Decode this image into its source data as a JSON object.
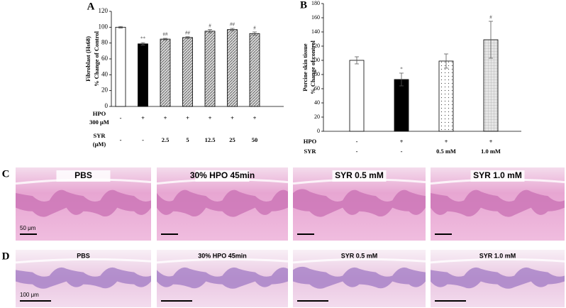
{
  "chart_data": [
    {
      "type": "bar",
      "panel": "A",
      "y_label": [
        "Fibroblast (Hs68)",
        "% Change of Control"
      ],
      "categories": [
        null,
        null,
        null,
        null,
        null,
        null,
        null
      ],
      "values": [
        100,
        79,
        85,
        87,
        95,
        97,
        92
      ],
      "errors": [
        1,
        1.5,
        1,
        1,
        2,
        1.5,
        2
      ],
      "annotations": [
        null,
        "**",
        "##",
        "##",
        "#",
        "##",
        "#"
      ],
      "fills": [
        "white",
        "black",
        "hatch",
        "hatch",
        "hatch",
        "hatch",
        "hatch"
      ],
      "ylim": [
        0,
        120
      ],
      "yticks": [
        0,
        20,
        40,
        60,
        80,
        100,
        120
      ],
      "rows": [
        {
          "label": [
            "HPO",
            "300 μM"
          ],
          "cells": [
            "-",
            "+",
            "+",
            "+",
            "+",
            "+",
            "+"
          ]
        },
        {
          "label": [
            "SYR",
            "(μM)"
          ],
          "cells": [
            "-",
            "-",
            "2.5",
            "5",
            "12.5",
            "25",
            "50"
          ]
        }
      ]
    },
    {
      "type": "bar",
      "panel": "B",
      "y_label": [
        "Porcine skin tissue",
        "% Change of control"
      ],
      "categories": [
        null,
        null,
        null,
        null
      ],
      "values": [
        100,
        73,
        99,
        129
      ],
      "errors": [
        5,
        9,
        10,
        26
      ],
      "annotations": [
        null,
        "*",
        null,
        "#"
      ],
      "fills": [
        "white",
        "black",
        "dots",
        "grid"
      ],
      "ylim": [
        0,
        180
      ],
      "yticks": [
        0,
        20,
        40,
        60,
        80,
        100,
        120,
        140,
        160,
        180
      ],
      "rows": [
        {
          "label": [
            "HPO"
          ],
          "cells": [
            "-",
            "+",
            "+",
            "+"
          ]
        },
        {
          "label": [
            "SYR"
          ],
          "cells": [
            "-",
            "-",
            "0.5 mM",
            "1.0 mM"
          ]
        }
      ]
    }
  ],
  "panels": [
    {
      "letter": "C",
      "images": [
        {
          "label": "PBS",
          "scale_bar": "50 μm"
        },
        {
          "label": "30% HPO 45min"
        },
        {
          "label": "SYR 0.5 mM"
        },
        {
          "label": "SYR 1.0 mM"
        }
      ]
    },
    {
      "letter": "D",
      "images": [
        {
          "label": "PBS",
          "scale_bar": "100 μm"
        },
        {
          "label": "30% HPO 45min"
        },
        {
          "label": "SYR 0.5 mM"
        },
        {
          "label": "SYR 1.0 mM"
        }
      ]
    }
  ]
}
